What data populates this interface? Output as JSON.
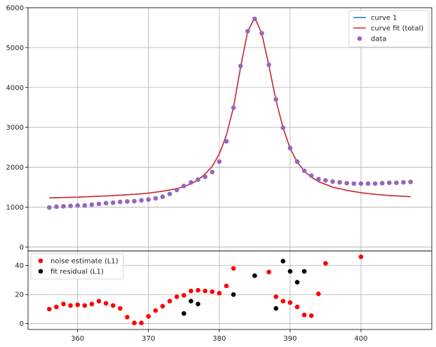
{
  "chart_data": [
    {
      "type": "line",
      "panel": "top",
      "xlim": [
        353,
        410
      ],
      "ylim": [
        -100,
        6000
      ],
      "yticks": [
        0,
        1000,
        2000,
        3000,
        4000,
        5000,
        6000
      ],
      "grid": true,
      "legend": {
        "placement": "top-right"
      },
      "series": [
        {
          "name": "curve 1",
          "kind": "line",
          "color": "#1f77b4",
          "x": [
            356,
            358,
            360,
            362,
            364,
            366,
            368,
            370,
            372,
            374,
            376,
            377,
            378,
            379,
            380,
            381,
            382,
            383,
            384,
            385,
            386,
            387,
            388,
            389,
            390,
            391,
            392,
            393,
            394,
            396,
            398,
            400,
            402,
            404,
            407
          ],
          "y": [
            1230,
            1240,
            1250,
            1265,
            1280,
            1300,
            1320,
            1350,
            1400,
            1460,
            1580,
            1680,
            1830,
            2020,
            2330,
            2800,
            3500,
            4500,
            5400,
            5750,
            5350,
            4550,
            3680,
            2990,
            2470,
            2130,
            1900,
            1750,
            1640,
            1500,
            1420,
            1360,
            1320,
            1290,
            1260
          ]
        },
        {
          "name": "curve fit (total)",
          "kind": "line",
          "color": "#d62728",
          "x": [
            356,
            358,
            360,
            362,
            364,
            366,
            368,
            370,
            372,
            374,
            376,
            377,
            378,
            379,
            380,
            381,
            382,
            383,
            384,
            385,
            386,
            387,
            388,
            389,
            390,
            391,
            392,
            393,
            394,
            396,
            398,
            400,
            402,
            404,
            407
          ],
          "y": [
            1230,
            1240,
            1250,
            1265,
            1280,
            1300,
            1320,
            1350,
            1400,
            1460,
            1580,
            1680,
            1830,
            2020,
            2330,
            2800,
            3500,
            4500,
            5400,
            5750,
            5350,
            4550,
            3680,
            2990,
            2470,
            2130,
            1900,
            1750,
            1640,
            1500,
            1420,
            1360,
            1320,
            1290,
            1260
          ]
        },
        {
          "name": "data",
          "kind": "scatter",
          "color": "#9467bd",
          "x": [
            356,
            357,
            358,
            359,
            360,
            361,
            362,
            363,
            364,
            365,
            366,
            367,
            368,
            369,
            370,
            371,
            372,
            373,
            374,
            375,
            376,
            377,
            378,
            379,
            380,
            381,
            382,
            383,
            384,
            385,
            386,
            387,
            388,
            389,
            390,
            391,
            392,
            393,
            394,
            395,
            396,
            397,
            398,
            399,
            400,
            401,
            402,
            403,
            404,
            405,
            406,
            407
          ],
          "y": [
            990,
            1010,
            1020,
            1030,
            1040,
            1040,
            1060,
            1080,
            1100,
            1110,
            1130,
            1140,
            1150,
            1170,
            1190,
            1220,
            1260,
            1330,
            1430,
            1530,
            1620,
            1690,
            1760,
            1880,
            2140,
            2650,
            3490,
            4540,
            5410,
            5720,
            5360,
            4570,
            3700,
            2990,
            2480,
            2140,
            1910,
            1790,
            1700,
            1670,
            1640,
            1620,
            1600,
            1590,
            1590,
            1590,
            1590,
            1600,
            1610,
            1610,
            1620,
            1630
          ]
        }
      ]
    },
    {
      "type": "scatter",
      "panel": "bottom",
      "xlim": [
        353,
        410
      ],
      "ylim": [
        -4,
        50
      ],
      "xticks": [
        360,
        370,
        380,
        390,
        400
      ],
      "yticks": [
        0,
        20,
        40
      ],
      "grid": true,
      "legend": {
        "placement": "top-left"
      },
      "series": [
        {
          "name": "noise estimate (L1)",
          "color": "#ff0000",
          "x": [
            356,
            357,
            358,
            359,
            360,
            361,
            362,
            363,
            364,
            365,
            366,
            367,
            368,
            369,
            370,
            371,
            372,
            373,
            374,
            375,
            376,
            377,
            378,
            379,
            380,
            381,
            382,
            387,
            388,
            389,
            390,
            391,
            392,
            393,
            394,
            395,
            400
          ],
          "y": [
            10,
            11.5,
            13.5,
            12.5,
            13,
            12.5,
            13.5,
            15.5,
            14,
            12.5,
            10.5,
            4.5,
            0.5,
            0.5,
            5,
            9,
            12,
            15.5,
            18.5,
            19.5,
            22.5,
            23,
            22.5,
            22,
            21,
            26,
            38,
            35.5,
            18.5,
            15.5,
            14.5,
            11.5,
            6,
            5.5,
            20.5,
            41.5,
            46
          ]
        },
        {
          "name": "fit residual (L1)",
          "color": "#000000",
          "x": [
            375,
            376,
            377,
            382,
            385,
            388,
            389,
            390,
            391,
            392
          ],
          "y": [
            7,
            15.5,
            13.5,
            20,
            33,
            10.5,
            43,
            36,
            28.5,
            36
          ]
        }
      ]
    }
  ]
}
